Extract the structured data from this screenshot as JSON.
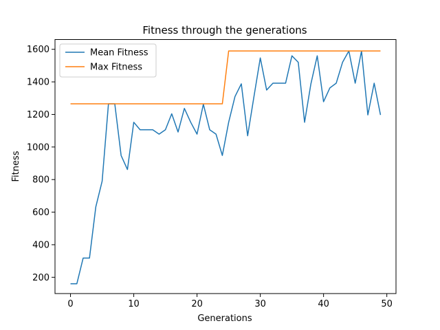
{
  "chart_data": {
    "type": "line",
    "title": "Fitness through the generations",
    "xlabel": "Generations",
    "ylabel": "Fitness",
    "xlim": [
      -2.45,
      51.45
    ],
    "ylim": [
      100,
      1660
    ],
    "xticks": [
      0,
      10,
      20,
      30,
      40,
      50
    ],
    "yticks": [
      200,
      400,
      600,
      800,
      1000,
      1200,
      1400,
      1600
    ],
    "grid": false,
    "legend_position": "upper-left",
    "x": [
      0,
      1,
      2,
      3,
      4,
      5,
      6,
      7,
      8,
      9,
      10,
      11,
      12,
      13,
      14,
      15,
      16,
      17,
      18,
      19,
      20,
      21,
      22,
      23,
      24,
      25,
      26,
      27,
      28,
      29,
      30,
      31,
      32,
      33,
      34,
      35,
      36,
      37,
      38,
      39,
      40,
      41,
      42,
      43,
      44,
      45,
      46,
      47,
      48,
      49
    ],
    "series": [
      {
        "name": "Mean Fitness",
        "color": "#1f77b4",
        "values": [
          160,
          160,
          318,
          318,
          632,
          790,
          1265,
          1265,
          948,
          862,
          1152,
          1106,
          1106,
          1106,
          1079,
          1106,
          1204,
          1092,
          1237,
          1152,
          1079,
          1263,
          1106,
          1079,
          948,
          1152,
          1310,
          1388,
          1069,
          1310,
          1547,
          1350,
          1392,
          1392,
          1392,
          1560,
          1520,
          1152,
          1388,
          1560,
          1278,
          1363,
          1392,
          1520,
          1590,
          1392,
          1590,
          1197,
          1392,
          1197
        ]
      },
      {
        "name": "Max Fitness",
        "color": "#ff7f0e",
        "values": [
          1265,
          1265,
          1265,
          1265,
          1265,
          1265,
          1265,
          1265,
          1265,
          1265,
          1265,
          1265,
          1265,
          1265,
          1265,
          1265,
          1265,
          1265,
          1265,
          1265,
          1265,
          1265,
          1265,
          1265,
          1265,
          1590,
          1590,
          1590,
          1590,
          1590,
          1590,
          1590,
          1590,
          1590,
          1590,
          1590,
          1590,
          1590,
          1590,
          1590,
          1590,
          1590,
          1590,
          1590,
          1590,
          1590,
          1590,
          1590,
          1590,
          1590
        ]
      }
    ]
  }
}
